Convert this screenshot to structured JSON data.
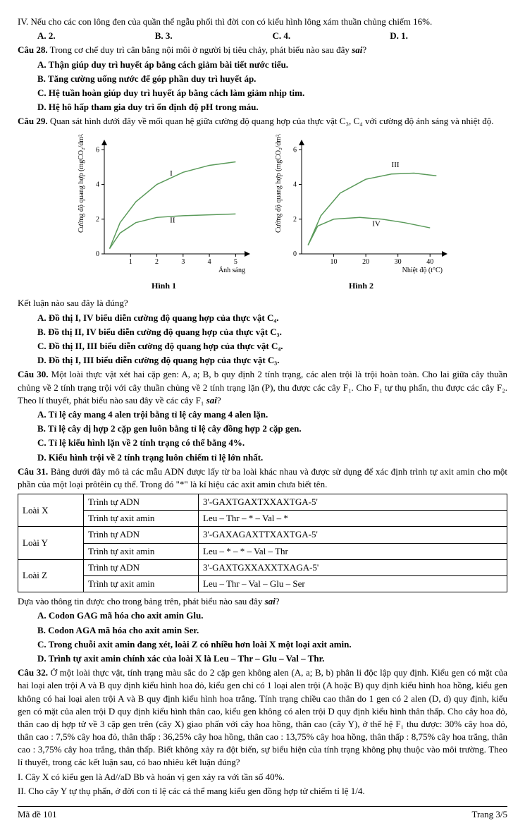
{
  "q_iv": {
    "text": "IV. Nếu cho các con lông đen của quần thể ngẫu phối thì đời con có kiểu hình lông xám thuần chủng chiếm 16%.",
    "opts": {
      "a": "A. 2.",
      "b": "B. 3.",
      "c": "C. 4.",
      "d": "D. 1."
    }
  },
  "q28": {
    "stem_bold": "Câu 28.",
    "stem_rest": " Trong cơ chế duy trì cân bằng nội môi ở người bị tiêu chảy, phát biểu nào sau đây ",
    "stem_ital": "sai",
    "stem_q": "?",
    "a": "A. Thận giúp duy trì huyết áp bằng cách giảm bài tiết nước tiểu.",
    "b": "B. Tăng cường uống nước để góp phần duy trì huyết áp.",
    "c": "C. Hệ tuần hoàn giúp duy trì huyết áp bằng cách làm giảm nhịp tim.",
    "d": "D. Hệ hô hấp tham gia duy trì ổn định độ pH trong máu."
  },
  "q29": {
    "stem_bold": "Câu 29.",
    "stem_rest": " Quan sát hình dưới đây về mối quan hệ giữa cường độ quang hợp của thực vật C₃, C₄ với cường độ ánh sáng và nhiệt độ.",
    "concl": "Kết luận nào sau đây là đúng?",
    "a": "A. Đồ thị I, IV biểu diễn cường độ quang hợp của thực vật C₄.",
    "b": "B. Đồ thị II, IV biểu diễn cường độ quang hợp của thực vật C₃.",
    "c": "C. Đồ thị II, III biểu diễn cường độ quang hợp của thực vật C₄.",
    "d": "D. Đồ thị I, III biểu diễn cường độ quang hợp của thực vật C₃."
  },
  "charts": {
    "c1": {
      "title": "Hình 1",
      "ylabel": "Cường độ quang hợp (mgCO₂/dm²/h)",
      "xlabel": "Ánh sáng",
      "xticks": [
        1,
        2,
        3,
        4,
        5
      ],
      "yticks": [
        0,
        2,
        4,
        6
      ],
      "xlim": [
        0,
        5.5
      ],
      "ylim": [
        0,
        6.5
      ],
      "series": [
        {
          "label": "I",
          "color": "#5a9a5a",
          "points": [
            [
              0.2,
              0.3
            ],
            [
              0.6,
              1.8
            ],
            [
              1.2,
              3.0
            ],
            [
              2.0,
              4.0
            ],
            [
              3.0,
              4.7
            ],
            [
              4.0,
              5.1
            ],
            [
              5.0,
              5.3
            ]
          ]
        },
        {
          "label": "II",
          "color": "#5a9a5a",
          "points": [
            [
              0.2,
              0.3
            ],
            [
              0.6,
              1.2
            ],
            [
              1.2,
              1.8
            ],
            [
              2.0,
              2.1
            ],
            [
              3.0,
              2.2
            ],
            [
              4.0,
              2.25
            ],
            [
              5.0,
              2.3
            ]
          ]
        }
      ],
      "label_pos": {
        "I": [
          2.5,
          4.5
        ],
        "II": [
          2.5,
          1.8
        ]
      }
    },
    "c2": {
      "title": "Hình 2",
      "ylabel": "Cường độ quang hợp (mgCO₂/dm²/h)",
      "xlabel": "Nhiệt độ (t°C)",
      "xticks": [
        10,
        20,
        30,
        40
      ],
      "yticks": [
        0,
        2,
        4,
        6
      ],
      "xlim": [
        0,
        45
      ],
      "ylim": [
        0,
        6.5
      ],
      "series": [
        {
          "label": "III",
          "color": "#5a9a5a",
          "points": [
            [
              2,
              0.5
            ],
            [
              6,
              2.2
            ],
            [
              12,
              3.5
            ],
            [
              20,
              4.3
            ],
            [
              28,
              4.6
            ],
            [
              35,
              4.65
            ],
            [
              42,
              4.5
            ]
          ]
        },
        {
          "label": "IV",
          "color": "#5a9a5a",
          "points": [
            [
              2,
              0.5
            ],
            [
              5,
              1.6
            ],
            [
              10,
              2.0
            ],
            [
              18,
              2.1
            ],
            [
              25,
              2.0
            ],
            [
              32,
              1.8
            ],
            [
              40,
              1.5
            ]
          ]
        }
      ],
      "label_pos": {
        "III": [
          28,
          5.0
        ],
        "IV": [
          22,
          1.6
        ]
      }
    }
  },
  "q30": {
    "stem_bold": "Câu 30.",
    "stem_rest": " Một loài thực vật xét hai cặp gen: A, a; B, b quy định 2 tính trạng, các alen trội là trội hoàn toàn. Cho lai giữa cây thuần chủng về 2 tính trạng trội với cây thuần chủng về 2 tính trạng lặn (P), thu được các cây F₁. Cho F₁ tự thụ phấn, thu được các cây F₂. Theo lí thuyết, phát biểu nào sau đây về các cây F₁ ",
    "stem_ital": "sai",
    "stem_q": "?",
    "a": "A. Tỉ lệ cây mang 4 alen trội bằng tỉ lệ cây mang 4 alen lặn.",
    "b": "B. Tỉ lệ cây dị hợp 2 cặp gen luôn bằng tỉ lệ cây đồng hợp 2 cặp gen.",
    "c": "C. Tỉ lệ kiểu hình lặn về 2 tính trạng có thể bằng 4%.",
    "d": "D. Kiểu hình trội về 2 tính trạng luôn chiếm tỉ lệ lớn nhất."
  },
  "q31": {
    "stem_bold": "Câu 31.",
    "stem_rest": " Bảng dưới đây mô tả các mẫu ADN được lấy từ ba loài khác nhau và được sử dụng để xác định trình tự axit amin cho một phần của một loại prôtêin cụ thể. Trong đó \"*\" là kí hiệu các axit amin chưa biết tên.",
    "table": {
      "rows": [
        [
          "Loài X",
          "Trình tự ADN",
          "3'-GAXTGAXTXXAXTGA-5'"
        ],
        [
          "",
          "Trình tự axit amin",
          "Leu – Thr – * – Val – *"
        ],
        [
          "Loài Y",
          "Trình tự ADN",
          "3'-GAXAGAXTTXAXTGA-5'"
        ],
        [
          "",
          "Trình tự axit amin",
          "Leu – * – * – Val – Thr"
        ],
        [
          "Loài Z",
          "Trình tự ADN",
          "3'-GAXTGXXAXXTXAGA-5'"
        ],
        [
          "",
          "Trình tự axit amin",
          "Leu – Thr – Val – Glu – Ser"
        ]
      ]
    },
    "post": "Dựa vào thông tin được cho trong bảng trên, phát biểu nào sau đây ",
    "post_ital": "sai",
    "post_q": "?",
    "a": "A. Codon GAG mã hóa cho axit amin Glu.",
    "b": "B. Codon AGA mã hóa cho axit amin Ser.",
    "c": "C. Trong chuỗi axit amin đang xét, loài Z có nhiều hơn loài X một loại axit amin.",
    "d": "D. Trình tự axit amin chính xác của loài X là  Leu – Thr – Glu – Val – Thr."
  },
  "q32": {
    "stem_bold": "Câu 32.",
    "stem_rest": " Ở một loài thực vật, tính trạng màu sắc do 2 cặp gen không alen (A, a; B, b) phân li độc lập quy định. Kiểu gen có mặt của hai loại alen trội A và B quy định kiểu hình hoa đỏ, kiểu gen chỉ có 1 loại alen trội (A hoặc B) quy định kiểu hình hoa hồng, kiểu gen không có hai loại alen trội A và B quy định kiểu hình hoa trắng. Tính trạng chiều cao thân do 1 gen có 2 alen (D, d) quy định, kiểu gen có mặt của alen trội D quy định kiểu hình thân cao, kiểu gen không có alen trội D quy định kiểu hình thân thấp. Cho cây hoa đỏ, thân cao dị hợp tử về 3 cặp gen trên (cây X) giao phấn với cây hoa hồng, thân cao (cây Y), ở thế hệ F₁ thu được: 30% cây hoa đỏ, thân cao : 7,5% cây hoa đỏ, thân thấp : 36,25% cây hoa hồng, thân cao : 13,75% cây hoa hồng, thân thấp : 8,75% cây hoa trắng, thân cao : 3,75% cây hoa trắng, thân thấp. Biết không xảy ra đột biến, sự biểu hiện của tính trạng không phụ thuộc vào môi trường. Theo lí thuyết, trong các kết luận sau, có bao nhiêu kết luận đúng?",
    "i": "I. Cây X có kiểu gen là Ad//aD Bb và hoán vị gen xảy ra với tần số 40%.",
    "ii": "II. Cho cây Y tự thụ phấn, ở đời con tỉ lệ các cá thể mang kiểu gen đồng hợp tử chiếm tỉ lệ 1/4."
  },
  "footer": {
    "left": "Mã đề 101",
    "right": "Trang 3/5"
  }
}
